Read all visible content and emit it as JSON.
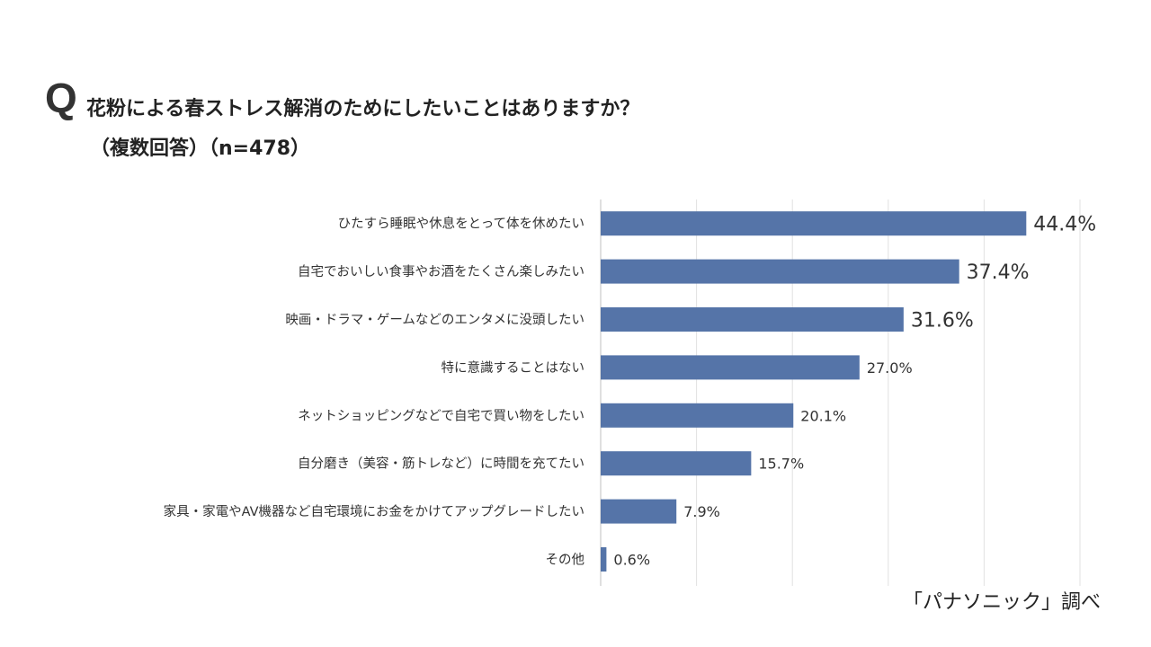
{
  "header": {
    "q_mark": "Q",
    "title": "花粉による春ストレス解消のためにしたいことはありますか？",
    "subtitle": "（複数回答）（n=478）"
  },
  "source": "「パナソニック」調べ",
  "chart_data": {
    "type": "bar",
    "orientation": "horizontal",
    "title": "花粉による春ストレス解消のためにしたいことはありますか？",
    "categories": [
      "ひたすら睡眠や休息をとって体を休めたい",
      "自宅でおいしい食事やお酒をたくさん楽しみたい",
      "映画・ドラマ・ゲームなどのエンタメに没頭したい",
      "特に意識することはない",
      "ネットショッピングなどで自宅で買い物をしたい",
      "自分磨き（美容・筋トレなど）に時間を充てたい",
      "家具・家電やAV機器など自宅環境にお金をかけてアップグレードしたい",
      "その他"
    ],
    "values": [
      44.4,
      37.4,
      31.6,
      27.0,
      20.1,
      15.7,
      7.9,
      0.6
    ],
    "data_labels": [
      "44.4%",
      "37.4%",
      "31.6%",
      "27.0%",
      "20.1%",
      "15.7%",
      "7.9%",
      "0.6%"
    ],
    "unit": "%",
    "xlim": [
      0,
      50
    ],
    "grid": true,
    "grid_step": 10,
    "bar_color": "#5574a8",
    "highlighted_top": 3
  }
}
